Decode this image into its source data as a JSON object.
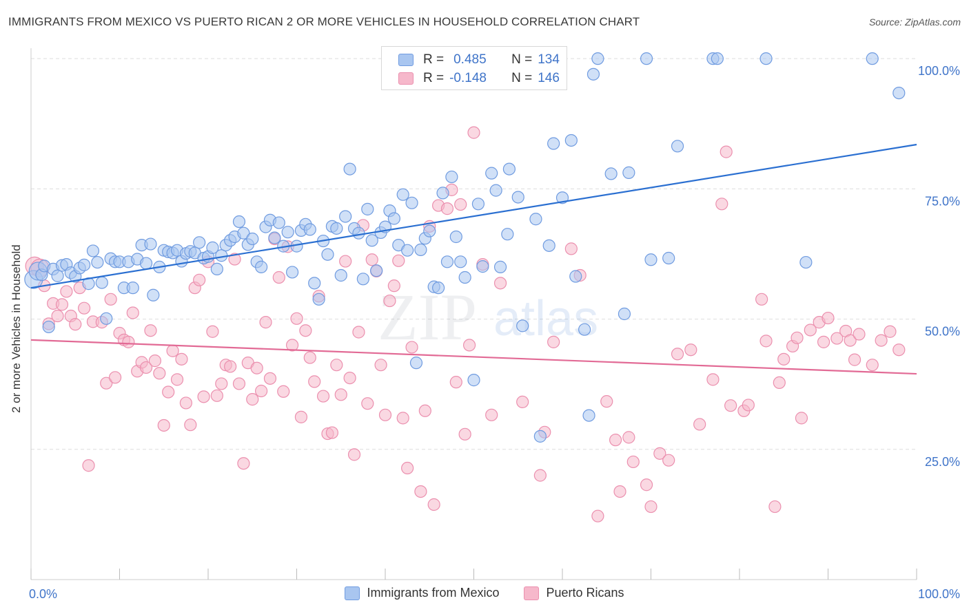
{
  "header": {
    "title": "IMMIGRANTS FROM MEXICO VS PUERTO RICAN 2 OR MORE VEHICLES IN HOUSEHOLD CORRELATION CHART",
    "source": "Source: ZipAtlas.com"
  },
  "watermark": {
    "zip": "ZIP",
    "atlas": "atlas"
  },
  "legend_top": {
    "rows": [
      {
        "r_label": "R =",
        "r_value": "0.485",
        "n_label": "N =",
        "n_value": "134"
      },
      {
        "r_label": "R =",
        "r_value": "-0.148",
        "n_label": "N =",
        "n_value": "146"
      }
    ]
  },
  "colors": {
    "blue_fill": "#a9c6f0",
    "blue_stroke": "#6f9be0",
    "blue_line": "#2a6fd1",
    "pink_fill": "#f6b8cb",
    "pink_stroke": "#eb8fae",
    "pink_line": "#e26a95",
    "tick_label": "#3f74c9",
    "grid": "#dddddd"
  },
  "chart_data": {
    "type": "scatter",
    "title": "IMMIGRANTS FROM MEXICO VS PUERTO RICAN 2 OR MORE VEHICLES IN HOUSEHOLD CORRELATION CHART",
    "xlabel": "",
    "ylabel": "2 or more Vehicles in Household",
    "xlim": [
      0,
      100
    ],
    "ylim": [
      0,
      102
    ],
    "x_tick_labels": [
      "0.0%",
      "100.0%"
    ],
    "y_ticks": [
      25,
      50,
      75,
      100
    ],
    "y_tick_labels": [
      "25.0%",
      "50.0%",
      "75.0%",
      "100.0%"
    ],
    "grid": "horizontal dashed",
    "legend_position": "bottom-center",
    "series": [
      {
        "name": "Immigrants from Mexico",
        "color": "#a9c6f0",
        "trend": {
          "x": [
            0,
            100
          ],
          "y": [
            56.0,
            83.5
          ]
        },
        "points": [
          [
            0.3,
            57.6
          ],
          [
            0.8,
            59.2
          ],
          [
            1.2,
            58.5
          ],
          [
            1.5,
            60.2
          ],
          [
            2.0,
            48.5
          ],
          [
            2.5,
            59.6
          ],
          [
            3.0,
            58.3
          ],
          [
            3.5,
            60.3
          ],
          [
            4.0,
            60.5
          ],
          [
            4.5,
            58.9
          ],
          [
            5.0,
            58.2
          ],
          [
            5.5,
            59.8
          ],
          [
            6.0,
            60.4
          ],
          [
            6.5,
            56.8
          ],
          [
            7.0,
            63.1
          ],
          [
            7.5,
            60.9
          ],
          [
            8.0,
            57.0
          ],
          [
            8.5,
            50.1
          ],
          [
            9.0,
            61.6
          ],
          [
            9.5,
            61.0
          ],
          [
            10.0,
            61.0
          ],
          [
            10.5,
            56.0
          ],
          [
            11.0,
            61.0
          ],
          [
            11.5,
            56.0
          ],
          [
            12.0,
            61.5
          ],
          [
            12.5,
            64.2
          ],
          [
            13.0,
            60.7
          ],
          [
            13.5,
            64.4
          ],
          [
            13.8,
            54.6
          ],
          [
            14.5,
            60.0
          ],
          [
            15.0,
            63.2
          ],
          [
            15.5,
            62.9
          ],
          [
            16.0,
            62.7
          ],
          [
            16.5,
            63.2
          ],
          [
            17.0,
            61.1
          ],
          [
            17.5,
            62.6
          ],
          [
            18.0,
            63.0
          ],
          [
            18.5,
            62.7
          ],
          [
            19.0,
            64.7
          ],
          [
            19.5,
            61.7
          ],
          [
            20.0,
            62.0
          ],
          [
            20.5,
            63.7
          ],
          [
            21.0,
            59.6
          ],
          [
            21.5,
            62.2
          ],
          [
            22.0,
            64.2
          ],
          [
            22.5,
            65.1
          ],
          [
            23.0,
            65.8
          ],
          [
            23.5,
            68.7
          ],
          [
            24.0,
            66.5
          ],
          [
            24.5,
            64.3
          ],
          [
            25.0,
            65.4
          ],
          [
            25.5,
            61.0
          ],
          [
            26.0,
            60.0
          ],
          [
            26.5,
            67.7
          ],
          [
            27.0,
            69.0
          ],
          [
            27.5,
            65.6
          ],
          [
            28.0,
            68.5
          ],
          [
            28.5,
            64.0
          ],
          [
            29.0,
            66.7
          ],
          [
            29.5,
            59.0
          ],
          [
            30.0,
            64.0
          ],
          [
            30.5,
            67.0
          ],
          [
            31.0,
            68.2
          ],
          [
            31.5,
            67.2
          ],
          [
            32.0,
            56.9
          ],
          [
            32.5,
            53.8
          ],
          [
            33.0,
            65.0
          ],
          [
            33.5,
            62.4
          ],
          [
            34.0,
            67.8
          ],
          [
            34.5,
            67.4
          ],
          [
            35.0,
            58.4
          ],
          [
            35.5,
            69.7
          ],
          [
            36.0,
            78.8
          ],
          [
            36.5,
            67.4
          ],
          [
            37.0,
            66.5
          ],
          [
            37.5,
            57.7
          ],
          [
            38.0,
            71.1
          ],
          [
            38.5,
            65.1
          ],
          [
            39.0,
            59.3
          ],
          [
            39.5,
            66.6
          ],
          [
            40.0,
            67.7
          ],
          [
            40.5,
            70.8
          ],
          [
            41.0,
            69.3
          ],
          [
            41.5,
            64.2
          ],
          [
            42.0,
            73.9
          ],
          [
            42.5,
            63.2
          ],
          [
            43.0,
            72.3
          ],
          [
            43.5,
            41.6
          ],
          [
            44.0,
            63.3
          ],
          [
            44.5,
            65.5
          ],
          [
            45.0,
            66.9
          ],
          [
            45.5,
            56.2
          ],
          [
            46.0,
            56.0
          ],
          [
            46.5,
            74.2
          ],
          [
            47.0,
            61.0
          ],
          [
            47.5,
            77.3
          ],
          [
            48.0,
            65.8
          ],
          [
            48.5,
            61.0
          ],
          [
            49.0,
            58.0
          ],
          [
            50.0,
            38.3
          ],
          [
            50.5,
            72.1
          ],
          [
            51.0,
            60.1
          ],
          [
            52.0,
            78.0
          ],
          [
            52.5,
            74.7
          ],
          [
            53.0,
            60.0
          ],
          [
            53.8,
            66.3
          ],
          [
            54.0,
            78.8
          ],
          [
            55.0,
            73.4
          ],
          [
            55.5,
            48.7
          ],
          [
            57.0,
            69.2
          ],
          [
            57.5,
            27.5
          ],
          [
            58.0,
            100
          ],
          [
            58.5,
            64.1
          ],
          [
            59.0,
            83.7
          ],
          [
            60.0,
            73.3
          ],
          [
            61.0,
            84.3
          ],
          [
            61.5,
            58.2
          ],
          [
            62.5,
            48.0
          ],
          [
            63.0,
            31.5
          ],
          [
            63.5,
            97.0
          ],
          [
            64.0,
            100
          ],
          [
            65.5,
            77.9
          ],
          [
            67.0,
            51.0
          ],
          [
            67.5,
            78.1
          ],
          [
            69.5,
            100
          ],
          [
            70.0,
            61.4
          ],
          [
            72.0,
            61.7
          ],
          [
            73.0,
            83.2
          ],
          [
            77.0,
            100
          ],
          [
            77.5,
            100
          ],
          [
            83.0,
            100
          ],
          [
            87.5,
            60.9
          ],
          [
            95.0,
            100
          ],
          [
            98.0,
            93.4
          ]
        ]
      },
      {
        "name": "Puerto Ricans",
        "color": "#f6b8cb",
        "trend": {
          "x": [
            0,
            100
          ],
          "y": [
            46.0,
            39.5
          ]
        },
        "points": [
          [
            0.4,
            60.2
          ],
          [
            1.0,
            59.8
          ],
          [
            1.5,
            56.4
          ],
          [
            2.0,
            49.1
          ],
          [
            2.5,
            53.0
          ],
          [
            3.0,
            50.6
          ],
          [
            3.5,
            52.8
          ],
          [
            4.0,
            55.3
          ],
          [
            4.5,
            50.6
          ],
          [
            5.0,
            49.0
          ],
          [
            5.5,
            56.0
          ],
          [
            6.0,
            52.1
          ],
          [
            6.5,
            21.9
          ],
          [
            7.0,
            49.5
          ],
          [
            8.0,
            49.4
          ],
          [
            8.5,
            37.7
          ],
          [
            9.0,
            53.8
          ],
          [
            9.5,
            38.8
          ],
          [
            10.0,
            47.3
          ],
          [
            10.5,
            46.0
          ],
          [
            11.0,
            45.6
          ],
          [
            11.5,
            51.2
          ],
          [
            12.0,
            40.0
          ],
          [
            12.5,
            41.7
          ],
          [
            13.0,
            40.7
          ],
          [
            13.5,
            47.8
          ],
          [
            14.0,
            42.0
          ],
          [
            14.5,
            39.6
          ],
          [
            15.0,
            29.6
          ],
          [
            15.5,
            36.0
          ],
          [
            16.0,
            43.9
          ],
          [
            16.5,
            38.4
          ],
          [
            17.0,
            42.3
          ],
          [
            17.5,
            33.9
          ],
          [
            18.0,
            29.7
          ],
          [
            18.5,
            56.0
          ],
          [
            19.0,
            57.5
          ],
          [
            19.5,
            35.1
          ],
          [
            20.0,
            61.0
          ],
          [
            20.5,
            47.6
          ],
          [
            21.0,
            35.3
          ],
          [
            21.5,
            37.6
          ],
          [
            22.0,
            41.2
          ],
          [
            22.5,
            40.9
          ],
          [
            23.0,
            61.5
          ],
          [
            23.5,
            37.6
          ],
          [
            24.0,
            22.3
          ],
          [
            24.5,
            41.6
          ],
          [
            25.0,
            34.6
          ],
          [
            25.5,
            40.6
          ],
          [
            26.0,
            36.2
          ],
          [
            26.5,
            49.4
          ],
          [
            27.0,
            38.6
          ],
          [
            27.5,
            65.4
          ],
          [
            28.0,
            58.0
          ],
          [
            28.5,
            36.1
          ],
          [
            29.0,
            63.9
          ],
          [
            29.5,
            45.0
          ],
          [
            30.0,
            50.1
          ],
          [
            30.5,
            31.2
          ],
          [
            31.0,
            47.8
          ],
          [
            31.5,
            42.6
          ],
          [
            32.0,
            38.0
          ],
          [
            32.5,
            54.4
          ],
          [
            33.0,
            35.2
          ],
          [
            33.5,
            28.0
          ],
          [
            34.0,
            28.2
          ],
          [
            34.5,
            41.2
          ],
          [
            35.0,
            35.5
          ],
          [
            35.5,
            61.1
          ],
          [
            36.0,
            38.7
          ],
          [
            36.5,
            24.0
          ],
          [
            37.0,
            47.5
          ],
          [
            37.5,
            68.0
          ],
          [
            38.0,
            33.8
          ],
          [
            38.5,
            61.4
          ],
          [
            39.0,
            59.2
          ],
          [
            39.5,
            41.2
          ],
          [
            40.0,
            31.6
          ],
          [
            40.5,
            53.5
          ],
          [
            41.0,
            56.4
          ],
          [
            41.5,
            61.2
          ],
          [
            42.0,
            31.0
          ],
          [
            42.5,
            21.4
          ],
          [
            43.0,
            44.6
          ],
          [
            44.0,
            16.9
          ],
          [
            44.5,
            32.4
          ],
          [
            45.0,
            67.8
          ],
          [
            45.5,
            14.4
          ],
          [
            46.0,
            71.8
          ],
          [
            47.0,
            71.2
          ],
          [
            47.5,
            74.8
          ],
          [
            48.0,
            37.9
          ],
          [
            48.5,
            72.0
          ],
          [
            49.0,
            27.9
          ],
          [
            49.5,
            45.0
          ],
          [
            50.0,
            85.8
          ],
          [
            51.0,
            60.5
          ],
          [
            52.0,
            31.6
          ],
          [
            53.0,
            56.9
          ],
          [
            55.5,
            34.1
          ],
          [
            57.5,
            20.0
          ],
          [
            58.0,
            28.3
          ],
          [
            59.0,
            45.6
          ],
          [
            61.0,
            63.5
          ],
          [
            62.0,
            58.4
          ],
          [
            64.0,
            12.2
          ],
          [
            65.0,
            34.2
          ],
          [
            66.0,
            26.8
          ],
          [
            66.5,
            16.9
          ],
          [
            67.5,
            27.3
          ],
          [
            68.0,
            22.6
          ],
          [
            69.5,
            18.2
          ],
          [
            70.0,
            14.0
          ],
          [
            71.0,
            24.2
          ],
          [
            72.0,
            22.9
          ],
          [
            73.0,
            43.3
          ],
          [
            74.5,
            44.1
          ],
          [
            75.5,
            29.8
          ],
          [
            77.0,
            38.4
          ],
          [
            78.0,
            72.1
          ],
          [
            78.5,
            82.1
          ],
          [
            79.0,
            33.4
          ],
          [
            80.5,
            32.4
          ],
          [
            81.0,
            33.5
          ],
          [
            82.5,
            53.8
          ],
          [
            83.0,
            45.8
          ],
          [
            84.0,
            14.0
          ],
          [
            84.5,
            37.8
          ],
          [
            85.0,
            42.3
          ],
          [
            86.0,
            44.8
          ],
          [
            86.5,
            46.4
          ],
          [
            87.0,
            31.0
          ],
          [
            88.0,
            47.9
          ],
          [
            89.0,
            49.4
          ],
          [
            89.5,
            45.6
          ],
          [
            90.0,
            50.2
          ],
          [
            91.0,
            46.3
          ],
          [
            92.0,
            47.7
          ],
          [
            92.5,
            45.9
          ],
          [
            93.0,
            42.2
          ],
          [
            93.5,
            47.1
          ],
          [
            95.0,
            41.2
          ],
          [
            96.0,
            45.9
          ],
          [
            97.0,
            47.6
          ],
          [
            98.0,
            44.1
          ]
        ]
      }
    ]
  }
}
